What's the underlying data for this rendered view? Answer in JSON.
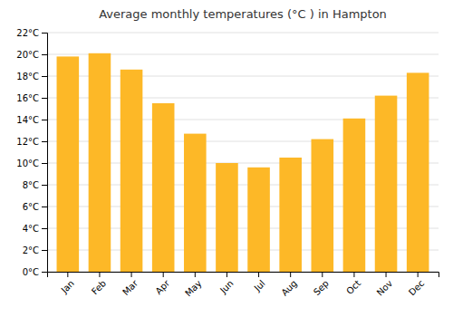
{
  "chart_data": {
    "type": "bar",
    "title": "Average monthly temperatures (°C ) in Hampton",
    "categories": [
      "Jan",
      "Feb",
      "Mar",
      "Apr",
      "May",
      "Jun",
      "Jul",
      "Aug",
      "Sep",
      "Oct",
      "Nov",
      "Dec"
    ],
    "values": [
      19.8,
      20.1,
      18.6,
      15.5,
      12.7,
      10.0,
      9.6,
      10.5,
      12.2,
      14.1,
      16.2,
      18.3
    ],
    "color": "#FDB827",
    "ylim": [
      0,
      22
    ],
    "yticks": [
      {
        "value": 0,
        "label": "0°C"
      },
      {
        "value": 2,
        "label": "2°C"
      },
      {
        "value": 4,
        "label": "4°C"
      },
      {
        "value": 6,
        "label": "6°C"
      },
      {
        "value": 8,
        "label": "8°C"
      },
      {
        "value": 10,
        "label": "10°C"
      },
      {
        "value": 12,
        "label": "12°C"
      },
      {
        "value": 14,
        "label": "14°C"
      },
      {
        "value": 16,
        "label": "16°C"
      },
      {
        "value": 18,
        "label": "18°C"
      },
      {
        "value": 20,
        "label": "20°C"
      },
      {
        "value": 22,
        "label": "22°C"
      }
    ],
    "grid": true
  }
}
